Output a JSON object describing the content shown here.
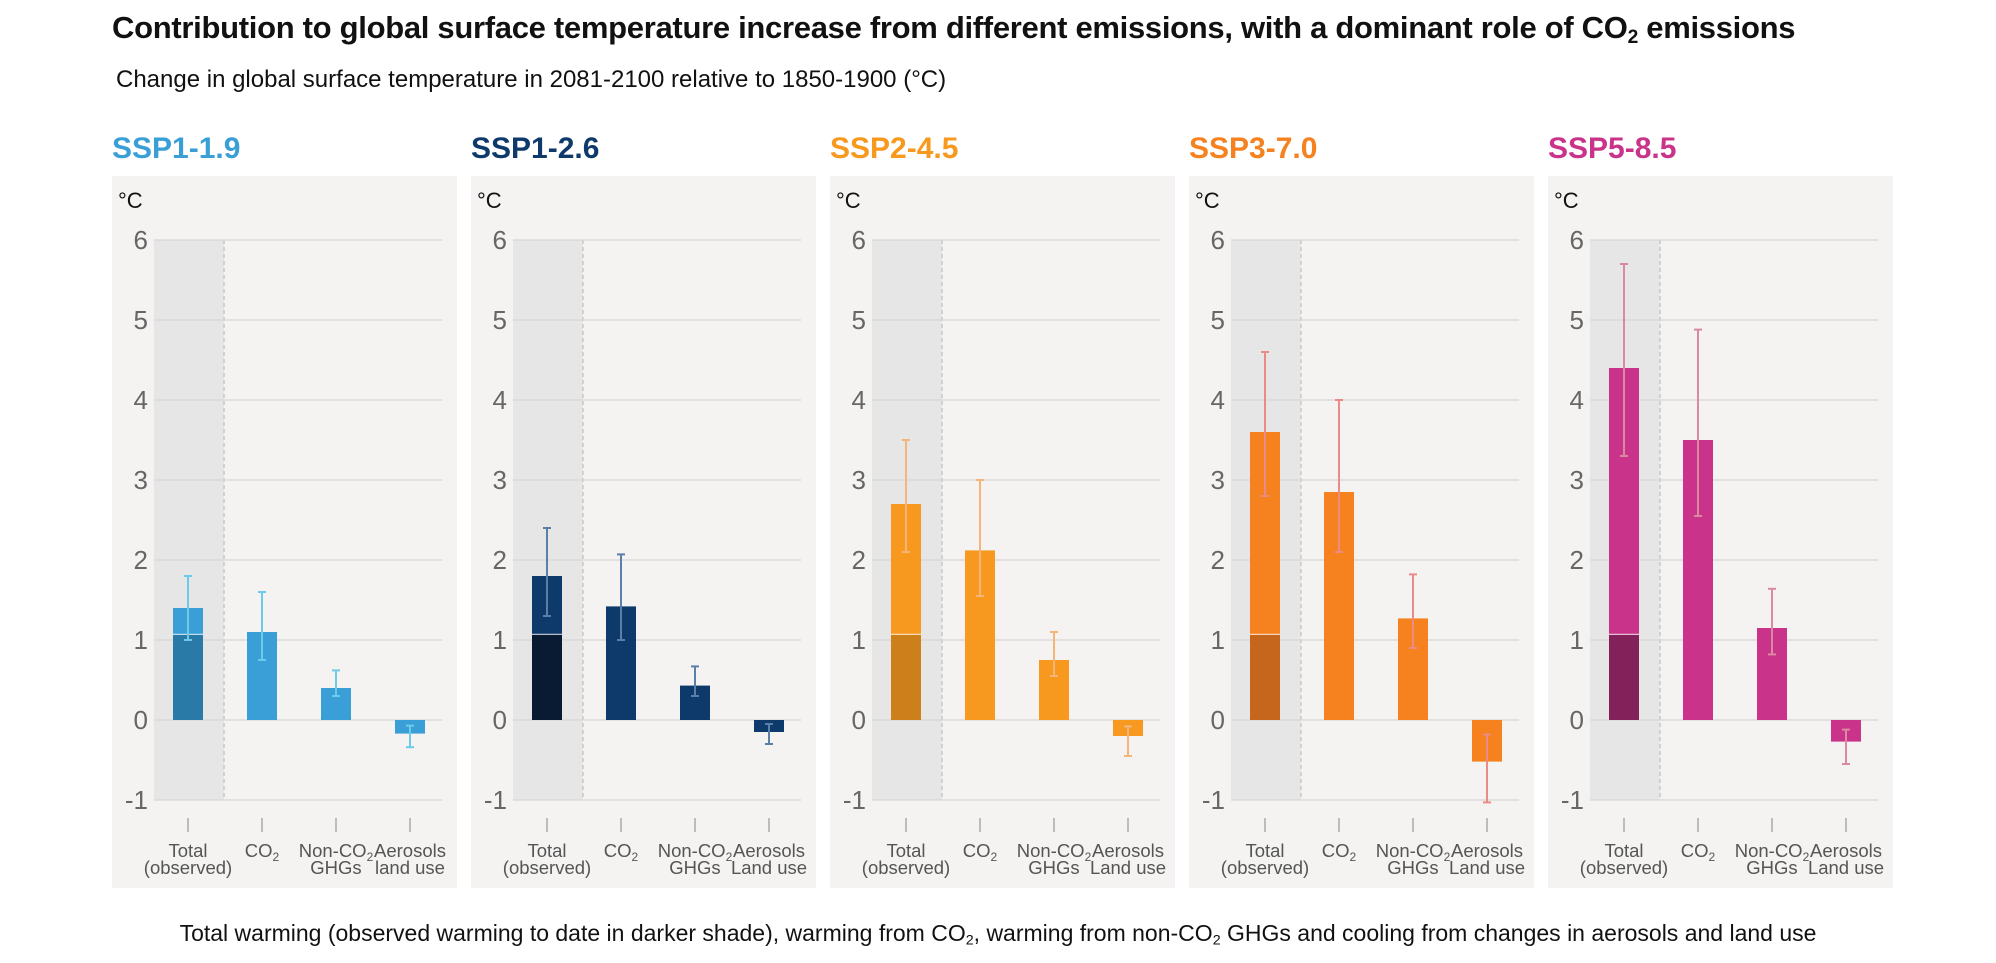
{
  "title": {
    "main": "Contribution to global surface temperature increase from different emissions, with a dominant role of CO",
    "sub2": "2",
    "tail": " emissions"
  },
  "subtitle": "Change in global surface temperature in 2081-2100 relative to 1850-1900 (°C)",
  "caption": {
    "p1": "Total warming (observed warming to date in darker shade), warming from  CO",
    "s1": "2",
    "p2": ", warming from  non-CO",
    "s2": "2",
    "p3": " GHGs and cooling from changes in aerosols and land use"
  },
  "chart_data": {
    "type": "bar",
    "ylabel": "°C",
    "ylim": [
      -1,
      6
    ],
    "yticks": [
      "6",
      "5",
      "4",
      "3",
      "2",
      "1",
      "0",
      "-1"
    ],
    "grid": true,
    "observed_to_date": 1.07,
    "categories": [
      {
        "line1": "Total",
        "line2": "(observed)"
      },
      {
        "line1": "CO",
        "sub": "2",
        "line2": ""
      },
      {
        "line1": "Non-CO",
        "sub": "2",
        "line2": "GHGs"
      },
      {
        "line1": "Aerosols",
        "line2": "land use"
      }
    ],
    "panels": [
      {
        "name": "SSP1-1.9",
        "color": "#3a9fd6",
        "observed_color": "#2a7aa8",
        "error_color": "#6ccbe8",
        "aerosol_label2": "land use",
        "values": [
          1.4,
          1.1,
          0.4,
          -0.17
        ],
        "error_low": [
          1.0,
          0.75,
          0.3,
          -0.34
        ],
        "error_high": [
          1.8,
          1.6,
          0.62,
          -0.07
        ]
      },
      {
        "name": "SSP1-2.6",
        "color": "#0e3a6b",
        "observed_color": "#081b33",
        "error_color": "#5a7fa8",
        "aerosol_label2": "Land use",
        "values": [
          1.8,
          1.42,
          0.43,
          -0.15
        ],
        "error_low": [
          1.3,
          1.0,
          0.3,
          -0.3
        ],
        "error_high": [
          2.4,
          2.07,
          0.67,
          -0.05
        ]
      },
      {
        "name": "SSP2-4.5",
        "color": "#f7991e",
        "observed_color": "#cd7f1b",
        "error_color": "#f5b57a",
        "aerosol_label2": "Land use",
        "values": [
          2.7,
          2.12,
          0.75,
          -0.2
        ],
        "error_low": [
          2.1,
          1.55,
          0.55,
          -0.45
        ],
        "error_high": [
          3.5,
          3.0,
          1.1,
          -0.08
        ]
      },
      {
        "name": "SSP3-7.0",
        "color": "#f5821f",
        "observed_color": "#c5661c",
        "error_color": "#ec8a88",
        "aerosol_label2": "Land use",
        "values": [
          3.6,
          2.85,
          1.27,
          -0.52
        ],
        "error_low": [
          2.8,
          2.1,
          0.9,
          -1.03
        ],
        "error_high": [
          4.6,
          4.0,
          1.82,
          -0.18
        ]
      },
      {
        "name": "SSP5-8.5",
        "color": "#c9348a",
        "observed_color": "#82215a",
        "error_color": "#d98aa0",
        "aerosol_label2": "Land use",
        "values": [
          4.4,
          3.5,
          1.15,
          -0.27
        ],
        "error_low": [
          3.3,
          2.55,
          0.82,
          -0.55
        ],
        "error_high": [
          5.7,
          4.88,
          1.64,
          -0.12
        ]
      }
    ]
  }
}
